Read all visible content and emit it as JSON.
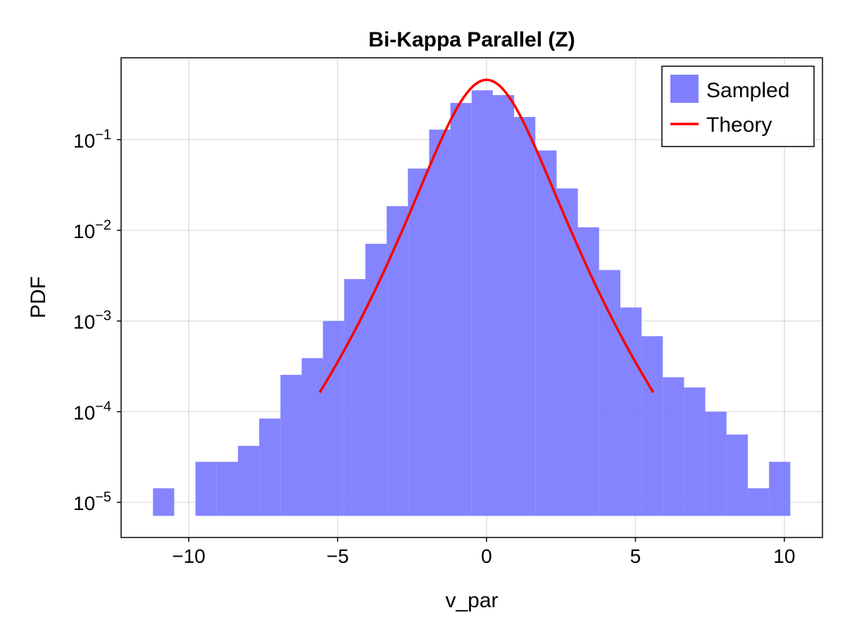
{
  "chart_data": {
    "type": "bar",
    "title": "Bi-Kappa Parallel (Z)",
    "xlabel": "v_par",
    "ylabel": "PDF",
    "yscale": "log",
    "xlim": [
      -12.27,
      11.28
    ],
    "ylim": [
      4.1e-06,
      0.8
    ],
    "grid": true,
    "legend_position": "top-right",
    "xticks": [
      -10,
      -5,
      0,
      5,
      10
    ],
    "xtick_labels": [
      "−10",
      "−5",
      "0",
      "5",
      "10"
    ],
    "yticks": [
      1e-05,
      0.0001,
      0.001,
      0.01,
      0.1
    ],
    "ytick_labels": [
      {
        "base": "10",
        "exp": "−5"
      },
      {
        "base": "10",
        "exp": "−4"
      },
      {
        "base": "10",
        "exp": "−3"
      },
      {
        "base": "10",
        "exp": "−2"
      },
      {
        "base": "10",
        "exp": "−1"
      }
    ],
    "histogram": {
      "name": "Sampled",
      "color": "#8080ff",
      "bin_start": -11.2,
      "bin_width": 0.7133,
      "baseline": 7.1e-06,
      "values": [
        1.43e-05,
        null,
        2.8e-05,
        2.8e-05,
        4.2e-05,
        8.4e-05,
        0.000255,
        0.00039,
        0.001,
        0.0029,
        0.0071,
        0.0185,
        0.048,
        0.129,
        0.254,
        0.35,
        0.31,
        0.178,
        0.076,
        0.029,
        0.0108,
        0.00365,
        0.00141,
        0.00068,
        0.00024,
        0.000185,
        0.0001,
        5.6e-05,
        1.43e-05,
        2.8e-05
      ]
    },
    "series": [
      {
        "name": "Theory",
        "color": "#ff0000",
        "x": [
          -5.6,
          -5.2,
          -4.8,
          -4.4,
          -4.0,
          -3.6,
          -3.2,
          -2.8,
          -2.4,
          -2.0,
          -1.6,
          -1.2,
          -0.8,
          -0.4,
          0,
          0.4,
          0.8,
          1.2,
          1.6,
          2.0,
          2.4,
          2.8,
          3.2,
          3.6,
          4.0,
          4.4,
          4.8,
          5.2,
          5.6
        ],
        "y": [
          0.000163,
          0.000271,
          0.000462,
          0.000811,
          0.00147,
          0.00274,
          0.0053,
          0.0105,
          0.0213,
          0.0435,
          0.0874,
          0.166,
          0.282,
          0.403,
          0.457,
          0.403,
          0.282,
          0.166,
          0.0874,
          0.0435,
          0.0213,
          0.0105,
          0.0053,
          0.00274,
          0.00147,
          0.000811,
          0.000462,
          0.000271,
          0.000163
        ]
      }
    ],
    "legend": [
      {
        "label": "Sampled",
        "kind": "patch",
        "color": "#8080ff"
      },
      {
        "label": "Theory",
        "kind": "line",
        "color": "#ff0000"
      }
    ]
  }
}
